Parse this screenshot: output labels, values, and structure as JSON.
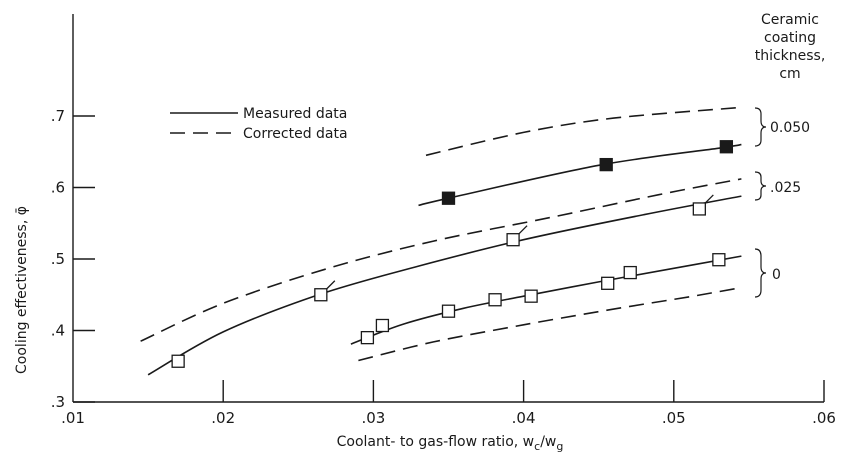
{
  "chart_data": {
    "type": "line",
    "title": "",
    "xlabel": "Coolant- to gas-flow ratio, w_c/w_g",
    "xlabel_parts": {
      "main": "Coolant- to gas-flow ratio, w",
      "sub1": "c",
      "slash": "/w",
      "sub2": "g"
    },
    "ylabel": "Cooling effectiveness, φ̄",
    "xlim": [
      0.01,
      0.06
    ],
    "ylim": [
      0.3,
      0.78
    ],
    "x_ticks": [
      {
        "value": 0.01,
        "label": ".01"
      },
      {
        "value": 0.02,
        "label": ".02"
      },
      {
        "value": 0.03,
        "label": ".03"
      },
      {
        "value": 0.04,
        "label": ".04"
      },
      {
        "value": 0.05,
        "label": ".05"
      },
      {
        "value": 0.06,
        "label": ".06"
      }
    ],
    "y_ticks": [
      {
        "value": 0.3,
        "label": ".3"
      },
      {
        "value": 0.4,
        "label": ".4"
      },
      {
        "value": 0.5,
        "label": ".5"
      },
      {
        "value": 0.6,
        "label": ".6"
      },
      {
        "value": 0.7,
        "label": ".7"
      }
    ],
    "grid": false,
    "legend": {
      "placement": "upper-left",
      "entries": [
        {
          "label": "Measured data",
          "style": "solid"
        },
        {
          "label": "Corrected data",
          "style": "dashed"
        }
      ]
    },
    "series_group_title": [
      "Ceramic",
      "coating",
      "thickness,",
      "cm"
    ],
    "groups": [
      {
        "thickness_label": "0.050",
        "marker": "filled-square",
        "measured": [
          [
            0.033,
            0.575
          ],
          [
            0.035,
            0.585
          ],
          [
            0.045,
            0.631
          ],
          [
            0.053,
            0.655
          ],
          [
            0.0545,
            0.66
          ]
        ],
        "corrected": [
          [
            0.0335,
            0.645
          ],
          [
            0.04,
            0.677
          ],
          [
            0.046,
            0.697
          ],
          [
            0.0545,
            0.712
          ]
        ],
        "points": [
          {
            "x": 0.035,
            "y": 0.585,
            "flagged": false
          },
          {
            "x": 0.0455,
            "y": 0.632,
            "flagged": false
          },
          {
            "x": 0.0535,
            "y": 0.657,
            "flagged": false
          }
        ]
      },
      {
        "thickness_label": ".025",
        "marker": "open-square",
        "measured": [
          [
            0.015,
            0.338
          ],
          [
            0.02,
            0.398
          ],
          [
            0.0265,
            0.451
          ],
          [
            0.033,
            0.49
          ],
          [
            0.04,
            0.527
          ],
          [
            0.048,
            0.562
          ],
          [
            0.0545,
            0.588
          ]
        ],
        "corrected": [
          [
            0.0145,
            0.385
          ],
          [
            0.02,
            0.438
          ],
          [
            0.027,
            0.487
          ],
          [
            0.034,
            0.525
          ],
          [
            0.042,
            0.559
          ],
          [
            0.049,
            0.59
          ],
          [
            0.0545,
            0.612
          ]
        ],
        "points": [
          {
            "x": 0.017,
            "y": 0.357,
            "flagged": false
          },
          {
            "x": 0.0265,
            "y": 0.45,
            "flagged": true
          },
          {
            "x": 0.0393,
            "y": 0.527,
            "flagged": true
          },
          {
            "x": 0.0517,
            "y": 0.57,
            "flagged": true
          }
        ]
      },
      {
        "thickness_label": "0",
        "marker": "open-square",
        "measured": [
          [
            0.0285,
            0.381
          ],
          [
            0.032,
            0.409
          ],
          [
            0.036,
            0.431
          ],
          [
            0.04,
            0.448
          ],
          [
            0.045,
            0.468
          ],
          [
            0.05,
            0.487
          ],
          [
            0.0545,
            0.504
          ]
        ],
        "corrected": [
          [
            0.029,
            0.358
          ],
          [
            0.034,
            0.384
          ],
          [
            0.04,
            0.408
          ],
          [
            0.046,
            0.43
          ],
          [
            0.051,
            0.447
          ],
          [
            0.0545,
            0.46
          ]
        ],
        "points": [
          {
            "x": 0.0296,
            "y": 0.39,
            "flagged": false
          },
          {
            "x": 0.0306,
            "y": 0.407,
            "flagged": false
          },
          {
            "x": 0.035,
            "y": 0.427,
            "flagged": false
          },
          {
            "x": 0.0381,
            "y": 0.443,
            "flagged": false
          },
          {
            "x": 0.0405,
            "y": 0.448,
            "flagged": false
          },
          {
            "x": 0.0456,
            "y": 0.466,
            "flagged": false
          },
          {
            "x": 0.0471,
            "y": 0.481,
            "flagged": false
          },
          {
            "x": 0.053,
            "y": 0.499,
            "flagged": false
          }
        ]
      }
    ]
  }
}
